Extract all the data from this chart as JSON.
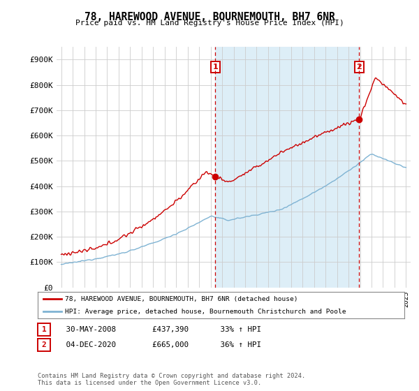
{
  "title1": "78, HAREWOOD AVENUE, BOURNEMOUTH, BH7 6NR",
  "title2": "Price paid vs. HM Land Registry's House Price Index (HPI)",
  "ylim": [
    0,
    950000
  ],
  "yticks": [
    0,
    100000,
    200000,
    300000,
    400000,
    500000,
    600000,
    700000,
    800000,
    900000
  ],
  "ytick_labels": [
    "£0",
    "£100K",
    "£200K",
    "£300K",
    "£400K",
    "£500K",
    "£600K",
    "£700K",
    "£800K",
    "£900K"
  ],
  "sale1_date": 2008.42,
  "sale1_price": 437390,
  "sale2_date": 2020.92,
  "sale2_price": 665000,
  "legend_line1": "78, HAREWOOD AVENUE, BOURNEMOUTH, BH7 6NR (detached house)",
  "legend_line2": "HPI: Average price, detached house, Bournemouth Christchurch and Poole",
  "table_row1": [
    "1",
    "30-MAY-2008",
    "£437,390",
    "33% ↑ HPI"
  ],
  "table_row2": [
    "2",
    "04-DEC-2020",
    "£665,000",
    "36% ↑ HPI"
  ],
  "footer": "Contains HM Land Registry data © Crown copyright and database right 2024.\nThis data is licensed under the Open Government Licence v3.0.",
  "line_color_red": "#cc0000",
  "line_color_blue": "#7fb3d3",
  "fill_color_blue": "#ddeef7",
  "background_color": "#ffffff",
  "grid_color": "#cccccc",
  "box_color": "#cc0000"
}
